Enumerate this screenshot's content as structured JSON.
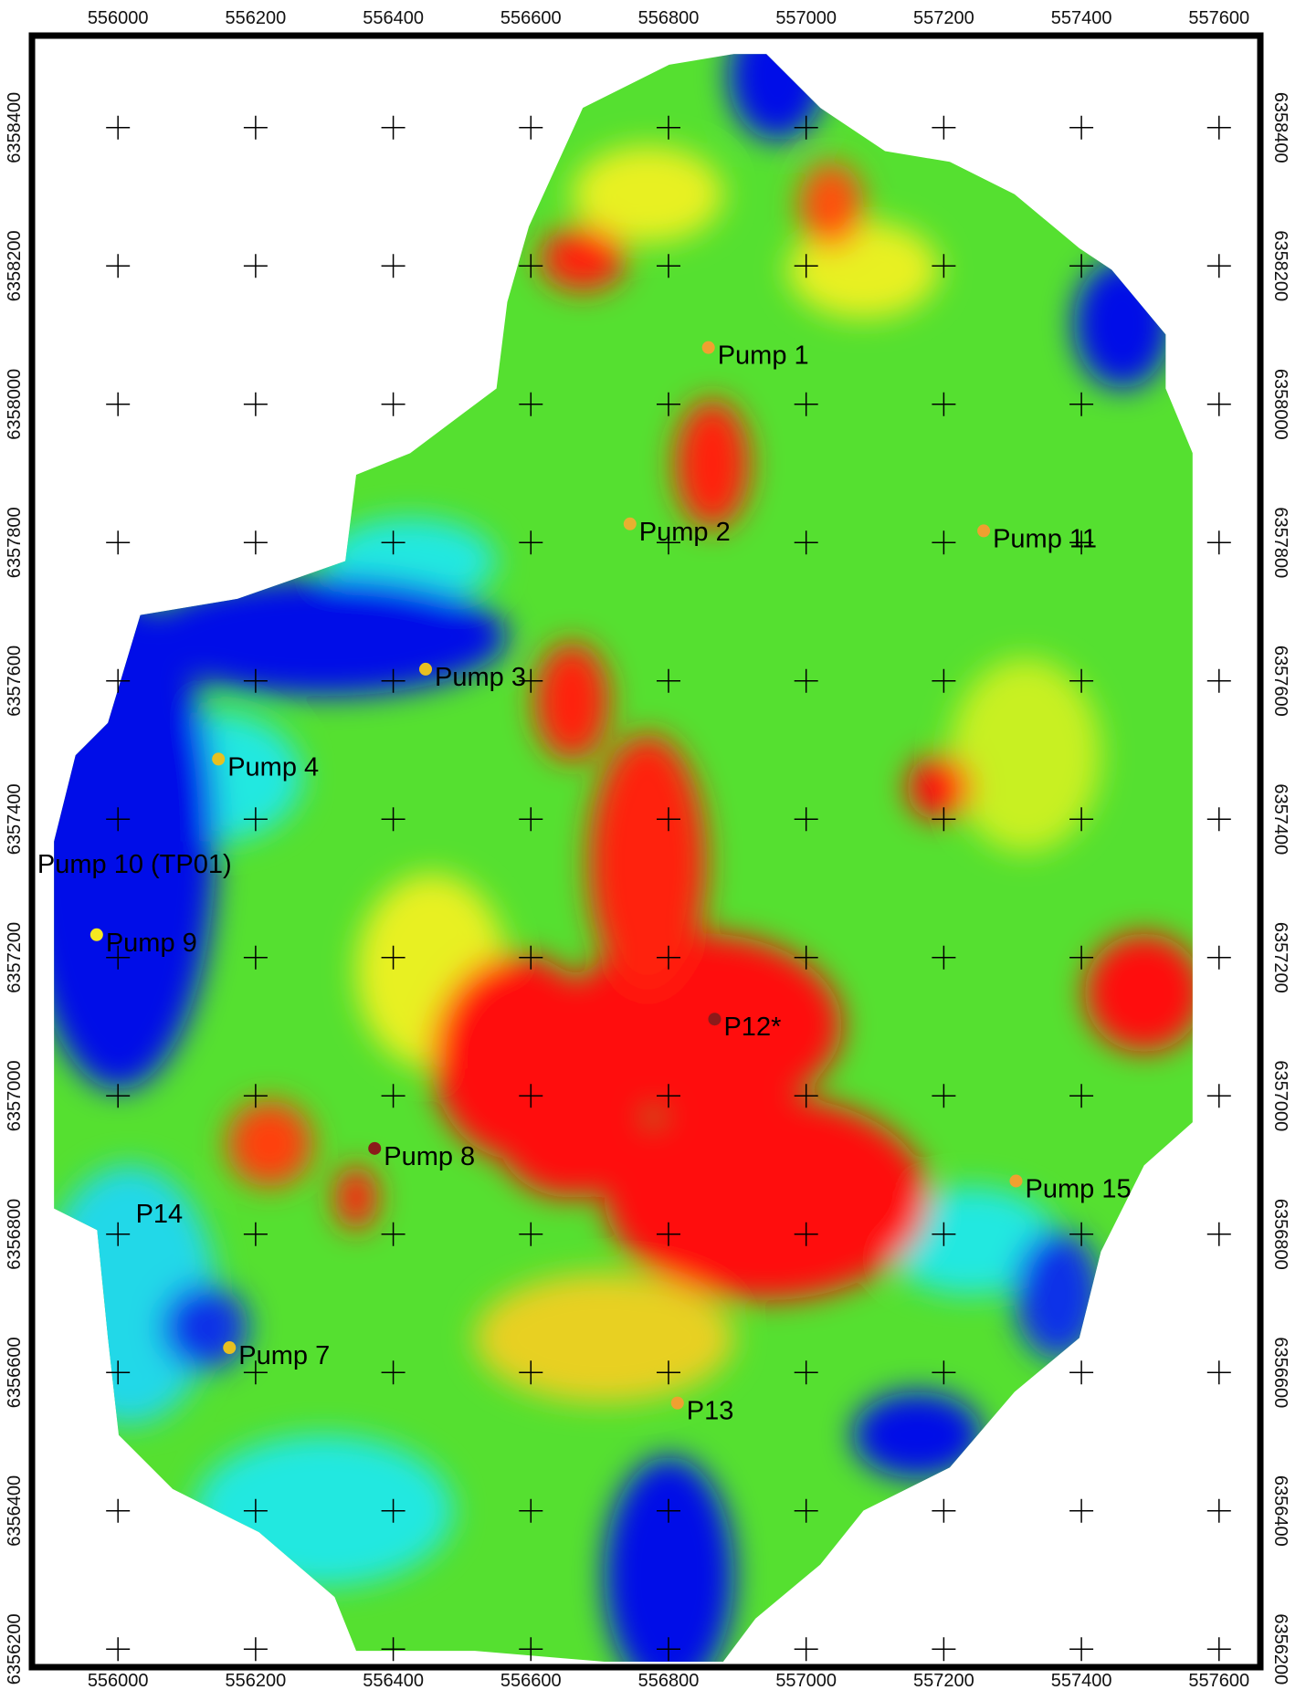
{
  "map": {
    "xlim": [
      555875,
      557660
    ],
    "ylim": [
      6356174,
      6358533
    ],
    "x_ticks": [
      556000,
      556200,
      556400,
      556600,
      556800,
      557000,
      557200,
      557400,
      557600
    ],
    "y_ticks": [
      6356200,
      6356400,
      6356600,
      6356800,
      6357000,
      6357200,
      6357400,
      6357600,
      6357800,
      6358000,
      6358200,
      6358400
    ],
    "points": [
      {
        "label": "Pump 1",
        "x": 556858,
        "y": 6358082,
        "color": "#f0a030"
      },
      {
        "label": "Pump 2",
        "x": 556744,
        "y": 6357827,
        "color": "#e8b030"
      },
      {
        "label": "Pump 3",
        "x": 556447,
        "y": 6357617,
        "color": "#e8c020"
      },
      {
        "label": "Pump 11",
        "x": 557258,
        "y": 6357817,
        "color": "#f0a030"
      },
      {
        "label": "Pump 4",
        "x": 556146,
        "y": 6357487,
        "color": "#e8c020"
      },
      {
        "label": "Pump 10 (TP01)",
        "x": 556024,
        "y": 6357336,
        "color": null
      },
      {
        "label": "Pump 9",
        "x": 555969,
        "y": 6357233,
        "color": "#f5e820"
      },
      {
        "label": "P12*",
        "x": 556867,
        "y": 6357111,
        "color": "#8b1a1a"
      },
      {
        "label": "Pump 8",
        "x": 556373,
        "y": 6356924,
        "color": "#8b1a1a"
      },
      {
        "label": "Pump 15",
        "x": 557305,
        "y": 6356877,
        "color": "#f0a030"
      },
      {
        "label": "P14",
        "x": 556060,
        "y": 6356830,
        "color": null
      },
      {
        "label": "Pump 7",
        "x": 556162,
        "y": 6356636,
        "color": "#e8c020"
      },
      {
        "label": "P13",
        "x": 556813,
        "y": 6356556,
        "color": "#f0a030"
      }
    ]
  }
}
